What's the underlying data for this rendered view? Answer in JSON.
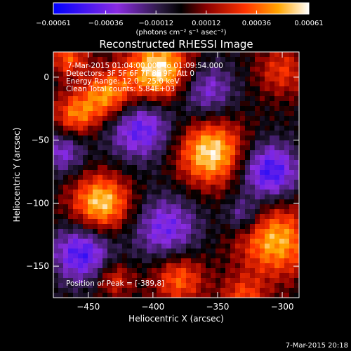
{
  "chart_data": {
    "type": "heatmap",
    "title": "Reconstructed RHESSI Image",
    "xlabel": "Heliocentric X (arcsec)",
    "ylabel": "Heliocentric Y (arcsec)",
    "xlim": [
      -477,
      -287
    ],
    "ylim": [
      -175,
      20
    ],
    "x_ticks": [
      -450,
      -400,
      -350,
      -300
    ],
    "y_ticks": [
      0,
      -50,
      -100,
      -150
    ],
    "colorbar": {
      "range": [
        -0.00061,
        0.00061
      ],
      "ticks": [
        "-0.00061",
        "-0.00036",
        "-0.00012",
        "0.00012",
        "0.00036",
        "0.00061"
      ],
      "units_label": "(photons cm⁻² s⁻¹ asec⁻²)",
      "colors": [
        "#0000ff",
        "#8a2be2",
        "#2a1a40",
        "#000000",
        "#8b0000",
        "#ff3300",
        "#ffa500",
        "#ffffff"
      ]
    },
    "annotations": {
      "time_range": "7-Mar-2015 01:04:00.000 to 01:09:54.000",
      "detectors": "Detectors: 3F 5F 6F 7F 8F 9F, Att 0",
      "energy": "Energy Range: 12.0 – 25.0 keV",
      "method": "Clean    Total counts: 5.84E+03",
      "peak": "Position of Peak = [-389,8]"
    },
    "sources": [
      {
        "x": -395,
        "y": 5,
        "sigma": 18,
        "amp": 1.0
      },
      {
        "x": -435,
        "y": -15,
        "sigma": 14,
        "amp": 0.75
      },
      {
        "x": -460,
        "y": -30,
        "sigma": 12,
        "amp": 0.6
      },
      {
        "x": -355,
        "y": -60,
        "sigma": 18,
        "amp": 0.95
      },
      {
        "x": -440,
        "y": -100,
        "sigma": 16,
        "amp": 0.9
      },
      {
        "x": -305,
        "y": -130,
        "sigma": 20,
        "amp": 0.8
      },
      {
        "x": -380,
        "y": -160,
        "sigma": 14,
        "amp": 0.6
      },
      {
        "x": -430,
        "y": -160,
        "sigma": 10,
        "amp": 0.45
      },
      {
        "x": -330,
        "y": -175,
        "sigma": 12,
        "amp": 0.5
      },
      {
        "x": -300,
        "y": 5,
        "sigma": 14,
        "amp": 0.45
      },
      {
        "x": -465,
        "y": 15,
        "sigma": 10,
        "amp": 0.55
      },
      {
        "x": -410,
        "y": -40,
        "sigma": 18,
        "amp": -0.7
      },
      {
        "x": -310,
        "y": -75,
        "sigma": 16,
        "amp": -0.8
      },
      {
        "x": -455,
        "y": -140,
        "sigma": 16,
        "amp": -0.75
      },
      {
        "x": -390,
        "y": -120,
        "sigma": 18,
        "amp": -0.6
      },
      {
        "x": -360,
        "y": -10,
        "sigma": 16,
        "amp": -0.55
      },
      {
        "x": -470,
        "y": -60,
        "sigma": 12,
        "amp": -0.5
      },
      {
        "x": -330,
        "y": -110,
        "sigma": 10,
        "amp": -0.45
      }
    ],
    "footer_date": "7-Mar-2015 20:18"
  }
}
